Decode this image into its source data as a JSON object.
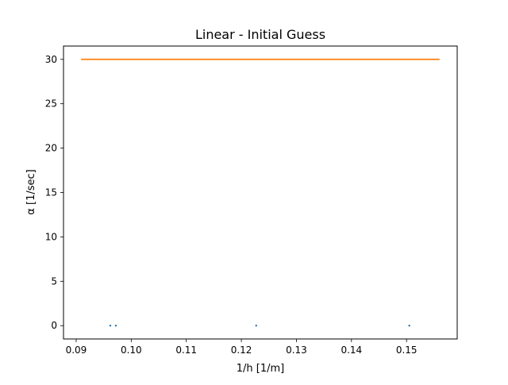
{
  "chart_data": {
    "type": "scatter",
    "title": "Linear - Initial Guess",
    "xlabel": "1/h [1/m]",
    "ylabel": "α [1/sec]",
    "xlim": [
      0.0877,
      0.1592
    ],
    "ylim": [
      -1.5,
      31.5
    ],
    "xticks": [
      0.09,
      0.1,
      0.11,
      0.12,
      0.13,
      0.14,
      0.15
    ],
    "xtick_labels": [
      "0.09",
      "0.10",
      "0.11",
      "0.12",
      "0.13",
      "0.14",
      "0.15"
    ],
    "yticks": [
      0,
      5,
      10,
      15,
      20,
      25,
      30
    ],
    "ytick_labels": [
      "0",
      "5",
      "10",
      "15",
      "20",
      "25",
      "30"
    ],
    "grid": false,
    "legend": "none",
    "series": [
      {
        "kind": "scatter",
        "color": "#1f77b4",
        "x": [
          0.0962,
          0.0972,
          0.1227,
          0.1505
        ],
        "y": [
          0,
          0,
          0,
          0
        ]
      },
      {
        "kind": "line",
        "color": "#ff7f0e",
        "x": [
          0.0909,
          0.156
        ],
        "y": [
          30,
          30
        ]
      }
    ]
  }
}
